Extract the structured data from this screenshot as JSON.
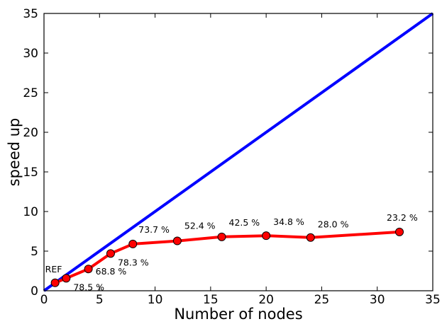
{
  "chart_data": {
    "type": "line",
    "title": "",
    "xlabel": "Number of nodes",
    "ylabel": "speed up",
    "xlim": [
      0,
      35
    ],
    "ylim": [
      0,
      35
    ],
    "xticks": [
      0,
      5,
      10,
      15,
      20,
      25,
      30,
      35
    ],
    "yticks": [
      0,
      5,
      10,
      15,
      20,
      25,
      30,
      35
    ],
    "grid": false,
    "series": [
      {
        "color": "#0000ff",
        "marker": "none",
        "x": [
          0,
          35
        ],
        "y": [
          0,
          35
        ]
      },
      {
        "color": "#ff0000",
        "marker": "circle",
        "x": [
          1,
          2,
          4,
          6,
          8,
          12,
          16,
          20,
          24,
          32
        ],
        "y": [
          1.0,
          1.57,
          2.75,
          4.7,
          5.9,
          6.29,
          6.8,
          6.95,
          6.72,
          7.42
        ]
      }
    ],
    "annotations": [
      {
        "text": "REF",
        "x": 1,
        "y": 1.0
      },
      {
        "text": "78.5 %",
        "x": 2,
        "y": 1.57
      },
      {
        "text": "68.8 %",
        "x": 4,
        "y": 2.75
      },
      {
        "text": "78.3 %",
        "x": 6,
        "y": 4.7
      },
      {
        "text": "73.7 %",
        "x": 8,
        "y": 5.9
      },
      {
        "text": "52.4 %",
        "x": 12,
        "y": 6.29
      },
      {
        "text": "42.5 %",
        "x": 16,
        "y": 6.8
      },
      {
        "text": "34.8 %",
        "x": 20,
        "y": 6.95
      },
      {
        "text": "28.0 %",
        "x": 24,
        "y": 6.72
      },
      {
        "text": "23.2 %",
        "x": 32,
        "y": 7.42
      }
    ]
  }
}
